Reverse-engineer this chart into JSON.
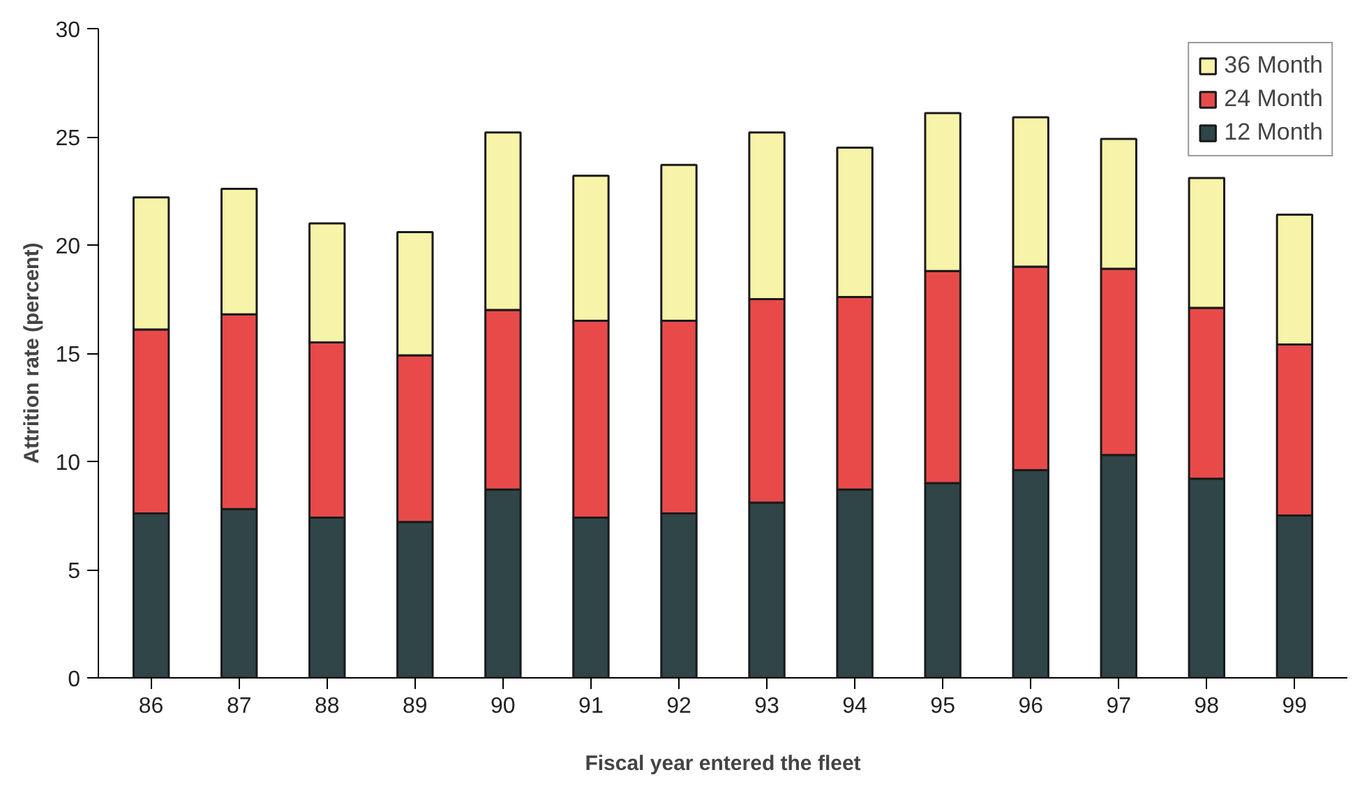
{
  "chart_data": {
    "type": "bar",
    "stacked": true,
    "xlabel": "Fiscal year entered the fleet",
    "ylabel": "Attrition rate (percent)",
    "categories": [
      "86",
      "87",
      "88",
      "89",
      "90",
      "91",
      "92",
      "93",
      "94",
      "95",
      "96",
      "97",
      "98",
      "99"
    ],
    "series": [
      {
        "name": "12 Month",
        "color": "#2f4548",
        "values": [
          7.6,
          7.8,
          7.4,
          7.2,
          8.7,
          7.4,
          7.6,
          8.1,
          8.7,
          9.0,
          9.6,
          10.3,
          9.2,
          7.5
        ]
      },
      {
        "name": "24 Month",
        "color": "#e84a4a",
        "values": [
          8.5,
          9.0,
          8.1,
          7.7,
          8.3,
          9.1,
          8.9,
          9.4,
          8.9,
          9.8,
          9.4,
          8.6,
          7.9,
          7.9
        ]
      },
      {
        "name": "36 Month",
        "color": "#f7f3a8",
        "values": [
          6.1,
          5.8,
          5.5,
          5.7,
          8.2,
          6.7,
          7.2,
          7.7,
          6.9,
          7.3,
          6.9,
          6.0,
          6.0,
          6.0
        ]
      }
    ],
    "ylim": [
      0,
      30
    ],
    "yticks": [
      0,
      5,
      10,
      15,
      20,
      25,
      30
    ],
    "grid": false,
    "legend": "top right"
  }
}
